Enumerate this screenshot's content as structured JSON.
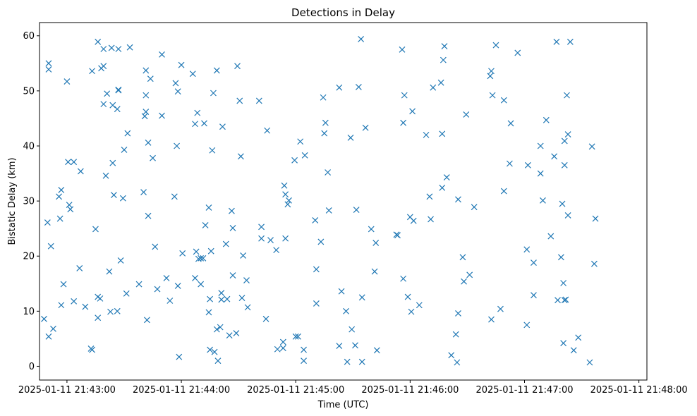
{
  "chart_data": {
    "type": "scatter",
    "title": "Detections in Delay",
    "xlabel": "Time (UTC)",
    "ylabel": "Bistatic Delay (km)",
    "x_unit": "minutes",
    "x_ticks": [
      {
        "value": 43,
        "label": "2025-01-11 21:43:00"
      },
      {
        "value": 44,
        "label": "2025-01-11 21:44:00"
      },
      {
        "value": 45,
        "label": "2025-01-11 21:45:00"
      },
      {
        "value": 46,
        "label": "2025-01-11 21:46:00"
      },
      {
        "value": 47,
        "label": "2025-01-11 21:47:00"
      },
      {
        "value": 48,
        "label": "2025-01-11 21:48:00"
      }
    ],
    "y_ticks": [
      0,
      10,
      20,
      30,
      40,
      50,
      60
    ],
    "xlim": [
      42.76,
      48.07
    ],
    "ylim": [
      -2.5,
      62.4
    ],
    "marker": "x",
    "color": "#1f77b4",
    "grid": false,
    "points": [
      [
        42.8,
        8.6
      ],
      [
        42.83,
        26.1
      ],
      [
        42.84,
        5.4
      ],
      [
        42.84,
        55.0
      ],
      [
        42.84,
        53.9
      ],
      [
        42.86,
        21.8
      ],
      [
        42.88,
        6.8
      ],
      [
        42.93,
        30.8
      ],
      [
        42.94,
        26.8
      ],
      [
        42.95,
        32.0
      ],
      [
        42.95,
        11.1
      ],
      [
        42.97,
        14.9
      ],
      [
        43.0,
        51.7
      ],
      [
        43.01,
        37.1
      ],
      [
        43.02,
        29.3
      ],
      [
        43.03,
        28.5
      ],
      [
        43.06,
        11.8
      ],
      [
        43.06,
        37.1
      ],
      [
        43.11,
        17.8
      ],
      [
        43.12,
        35.4
      ],
      [
        43.16,
        10.8
      ],
      [
        43.21,
        3.2
      ],
      [
        43.22,
        53.6
      ],
      [
        43.22,
        3.0
      ],
      [
        43.25,
        24.9
      ],
      [
        43.27,
        12.6
      ],
      [
        43.27,
        8.8
      ],
      [
        43.27,
        58.9
      ],
      [
        43.29,
        12.3
      ],
      [
        43.3,
        54.1
      ],
      [
        43.32,
        57.6
      ],
      [
        43.32,
        54.5
      ],
      [
        43.32,
        47.6
      ],
      [
        43.34,
        34.6
      ],
      [
        43.35,
        49.5
      ],
      [
        43.37,
        17.2
      ],
      [
        43.38,
        9.9
      ],
      [
        43.39,
        57.8
      ],
      [
        43.4,
        47.4
      ],
      [
        43.4,
        36.9
      ],
      [
        43.41,
        31.1
      ],
      [
        43.44,
        46.7
      ],
      [
        43.44,
        10.0
      ],
      [
        43.45,
        50.2
      ],
      [
        43.45,
        50.1
      ],
      [
        43.45,
        57.6
      ],
      [
        43.47,
        19.2
      ],
      [
        43.49,
        30.5
      ],
      [
        43.5,
        39.3
      ],
      [
        43.52,
        13.2
      ],
      [
        43.53,
        42.3
      ],
      [
        43.55,
        57.9
      ],
      [
        43.63,
        14.9
      ],
      [
        43.67,
        31.6
      ],
      [
        43.68,
        45.4
      ],
      [
        43.69,
        46.2
      ],
      [
        43.69,
        53.7
      ],
      [
        43.69,
        49.2
      ],
      [
        43.7,
        8.4
      ],
      [
        43.71,
        40.6
      ],
      [
        43.71,
        27.3
      ],
      [
        43.73,
        52.2
      ],
      [
        43.75,
        37.8
      ],
      [
        43.77,
        21.7
      ],
      [
        43.79,
        14.0
      ],
      [
        43.83,
        45.5
      ],
      [
        43.83,
        56.6
      ],
      [
        43.87,
        16.0
      ],
      [
        43.9,
        11.9
      ],
      [
        43.94,
        30.8
      ],
      [
        43.95,
        51.4
      ],
      [
        43.96,
        40.0
      ],
      [
        43.97,
        14.6
      ],
      [
        43.97,
        49.9
      ],
      [
        43.98,
        1.7
      ],
      [
        44.0,
        54.7
      ],
      [
        44.01,
        20.5
      ],
      [
        44.1,
        53.1
      ],
      [
        44.12,
        16.0
      ],
      [
        44.12,
        44.0
      ],
      [
        44.13,
        20.8
      ],
      [
        44.14,
        46.0
      ],
      [
        44.15,
        19.5
      ],
      [
        44.17,
        19.6
      ],
      [
        44.17,
        14.9
      ],
      [
        44.19,
        19.6
      ],
      [
        44.2,
        44.1
      ],
      [
        44.21,
        25.6
      ],
      [
        44.24,
        9.8
      ],
      [
        44.24,
        28.8
      ],
      [
        44.25,
        12.2
      ],
      [
        44.25,
        3.0
      ],
      [
        44.26,
        20.9
      ],
      [
        44.27,
        39.2
      ],
      [
        44.28,
        49.6
      ],
      [
        44.29,
        2.6
      ],
      [
        44.31,
        53.7
      ],
      [
        44.31,
        6.7
      ],
      [
        44.32,
        1.0
      ],
      [
        44.34,
        7.1
      ],
      [
        44.35,
        13.3
      ],
      [
        44.35,
        12.1
      ],
      [
        44.36,
        43.5
      ],
      [
        44.39,
        22.2
      ],
      [
        44.4,
        12.2
      ],
      [
        44.42,
        5.6
      ],
      [
        44.44,
        28.2
      ],
      [
        44.45,
        25.1
      ],
      [
        44.45,
        16.5
      ],
      [
        44.48,
        6.0
      ],
      [
        44.49,
        54.5
      ],
      [
        44.51,
        48.2
      ],
      [
        44.52,
        38.1
      ],
      [
        44.53,
        12.4
      ],
      [
        44.54,
        20.1
      ],
      [
        44.57,
        15.6
      ],
      [
        44.58,
        10.7
      ],
      [
        44.68,
        48.2
      ],
      [
        44.7,
        25.3
      ],
      [
        44.7,
        23.2
      ],
      [
        44.74,
        8.6
      ],
      [
        44.75,
        42.8
      ],
      [
        44.78,
        22.9
      ],
      [
        44.83,
        21.1
      ],
      [
        44.84,
        3.1
      ],
      [
        44.89,
        4.4
      ],
      [
        44.89,
        3.3
      ],
      [
        44.9,
        32.8
      ],
      [
        44.91,
        23.2
      ],
      [
        44.91,
        31.2
      ],
      [
        44.93,
        29.4
      ],
      [
        44.94,
        30.1
      ],
      [
        44.99,
        37.4
      ],
      [
        45.0,
        5.4
      ],
      [
        45.04,
        40.8
      ],
      [
        45.07,
        3.0
      ],
      [
        45.07,
        1.0
      ],
      [
        45.08,
        38.3
      ],
      [
        45.17,
        26.5
      ],
      [
        45.18,
        11.4
      ],
      [
        45.18,
        17.6
      ],
      [
        45.22,
        22.6
      ],
      [
        45.24,
        48.8
      ],
      [
        45.25,
        42.3
      ],
      [
        45.26,
        44.2
      ],
      [
        45.28,
        35.2
      ],
      [
        45.29,
        28.3
      ],
      [
        45.38,
        3.7
      ],
      [
        45.38,
        50.6
      ],
      [
        45.4,
        13.6
      ],
      [
        45.44,
        10.0
      ],
      [
        45.45,
        0.8
      ],
      [
        45.48,
        41.5
      ],
      [
        45.49,
        6.7
      ],
      [
        45.52,
        3.8
      ],
      [
        45.53,
        28.4
      ],
      [
        45.55,
        50.7
      ],
      [
        45.57,
        59.4
      ],
      [
        45.58,
        12.5
      ],
      [
        45.58,
        0.8
      ],
      [
        45.61,
        43.3
      ],
      [
        45.66,
        24.9
      ],
      [
        45.69,
        17.2
      ],
      [
        45.7,
        22.4
      ],
      [
        45.71,
        2.9
      ],
      [
        45.88,
        23.9
      ],
      [
        45.89,
        23.8
      ],
      [
        45.93,
        57.5
      ],
      [
        45.94,
        15.9
      ],
      [
        45.94,
        44.2
      ],
      [
        45.95,
        49.2
      ],
      [
        45.98,
        12.6
      ],
      [
        46.0,
        27.1
      ],
      [
        46.01,
        9.9
      ],
      [
        46.02,
        46.3
      ],
      [
        46.03,
        26.4
      ],
      [
        46.08,
        11.1
      ],
      [
        46.14,
        42.0
      ],
      [
        46.17,
        30.8
      ],
      [
        46.18,
        26.7
      ],
      [
        46.2,
        50.6
      ],
      [
        46.27,
        51.5
      ],
      [
        46.28,
        42.2
      ],
      [
        46.28,
        32.4
      ],
      [
        46.29,
        55.6
      ],
      [
        46.3,
        58.1
      ],
      [
        46.32,
        34.3
      ],
      [
        46.36,
        2.0
      ],
      [
        46.4,
        5.8
      ],
      [
        46.41,
        0.7
      ],
      [
        46.42,
        9.6
      ],
      [
        46.42,
        30.3
      ],
      [
        46.46,
        19.8
      ],
      [
        46.47,
        15.4
      ],
      [
        46.49,
        45.7
      ],
      [
        46.52,
        16.6
      ],
      [
        46.56,
        28.9
      ],
      [
        46.7,
        52.7
      ],
      [
        46.71,
        8.5
      ],
      [
        46.71,
        53.6
      ],
      [
        46.72,
        49.2
      ],
      [
        46.75,
        58.3
      ],
      [
        46.79,
        10.4
      ],
      [
        46.82,
        31.8
      ],
      [
        46.82,
        48.3
      ],
      [
        46.87,
        36.8
      ],
      [
        46.88,
        44.1
      ],
      [
        46.94,
        56.9
      ],
      [
        47.02,
        7.5
      ],
      [
        47.02,
        21.2
      ],
      [
        47.03,
        36.5
      ],
      [
        47.08,
        18.8
      ],
      [
        47.08,
        12.9
      ],
      [
        47.14,
        40.0
      ],
      [
        47.14,
        35.0
      ],
      [
        47.16,
        30.1
      ],
      [
        47.19,
        44.7
      ],
      [
        47.23,
        23.6
      ],
      [
        47.26,
        38.1
      ],
      [
        47.28,
        58.9
      ],
      [
        47.29,
        12.0
      ],
      [
        47.32,
        19.8
      ],
      [
        47.33,
        29.5
      ],
      [
        47.34,
        4.2
      ],
      [
        47.34,
        15.1
      ],
      [
        47.35,
        12.0
      ],
      [
        47.35,
        36.5
      ],
      [
        47.35,
        40.9
      ],
      [
        47.36,
        12.1
      ],
      [
        47.37,
        49.2
      ],
      [
        47.38,
        42.1
      ],
      [
        47.38,
        27.4
      ],
      [
        47.4,
        58.9
      ],
      [
        47.43,
        2.9
      ],
      [
        47.47,
        5.2
      ],
      [
        47.57,
        0.7
      ],
      [
        47.59,
        39.9
      ],
      [
        47.61,
        18.6
      ],
      [
        47.62,
        26.8
      ],
      [
        45.02,
        5.4
      ]
    ]
  }
}
